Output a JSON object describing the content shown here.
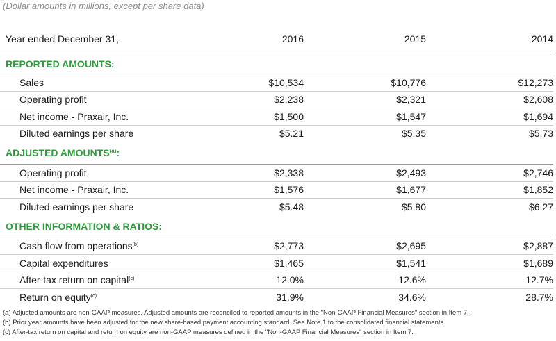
{
  "caption": "(Dollar amounts in millions, except per share data)",
  "header": {
    "label": "Year ended December 31,",
    "years": [
      "2016",
      "2015",
      "2014"
    ]
  },
  "sections": {
    "reported": {
      "title": "REPORTED AMOUNTS:",
      "rows": [
        {
          "label": "Sales",
          "sup": "",
          "values": [
            "$10,534",
            "$10,776",
            "$12,273"
          ]
        },
        {
          "label": "Operating profit",
          "sup": "",
          "values": [
            "$2,238",
            "$2,321",
            "$2,608"
          ]
        },
        {
          "label": "Net income - Praxair, Inc.",
          "sup": "",
          "values": [
            "$1,500",
            "$1,547",
            "$1,694"
          ]
        },
        {
          "label": "Diluted earnings per share",
          "sup": "",
          "values": [
            "$5.21",
            "$5.35",
            "$5.73"
          ]
        }
      ]
    },
    "adjusted": {
      "title": "ADJUSTED AMOUNTS",
      "title_sup": "(a)",
      "title_suffix": ":",
      "rows": [
        {
          "label": "Operating profit",
          "sup": "",
          "values": [
            "$2,338",
            "$2,493",
            "$2,746"
          ]
        },
        {
          "label": "Net income - Praxair, Inc.",
          "sup": "",
          "values": [
            "$1,576",
            "$1,677",
            "$1,852"
          ]
        },
        {
          "label": "Diluted earnings per share",
          "sup": "",
          "values": [
            "$5.48",
            "$5.80",
            "$6.27"
          ]
        }
      ]
    },
    "other": {
      "title": "OTHER INFORMATION & RATIOS:",
      "rows": [
        {
          "label": "Cash flow from operations",
          "sup": "(b)",
          "values": [
            "$2,773",
            "$2,695",
            "$2,887"
          ]
        },
        {
          "label": "Capital expenditures",
          "sup": "",
          "values": [
            "$1,465",
            "$1,541",
            "$1,689"
          ]
        },
        {
          "label": "After-tax return on capital",
          "sup": "(c)",
          "values": [
            "12.0%",
            "12.6%",
            "12.7%"
          ]
        },
        {
          "label": "Return on equity",
          "sup": "(c)",
          "values": [
            "31.9%",
            "34.6%",
            "28.7%"
          ]
        }
      ]
    }
  },
  "footnotes": [
    "(a)  Adjusted amounts are non-GAAP measures. Adjusted amounts are reconciled to reported amounts in the \"Non-GAAP Financial Measures\" section in Item 7.",
    "(b)  Prior year amounts have been adjusted for the new share-based payment accounting standard. See Note 1 to the consolidated financial statements.",
    "(c)  After-tax return on capital and return on equity are non-GAAP measures defined in the \"Non-GAAP Financial Measures\" section in Item 7."
  ],
  "colors": {
    "section_title": "#2f9a3c",
    "caption": "#8c8c8c"
  }
}
